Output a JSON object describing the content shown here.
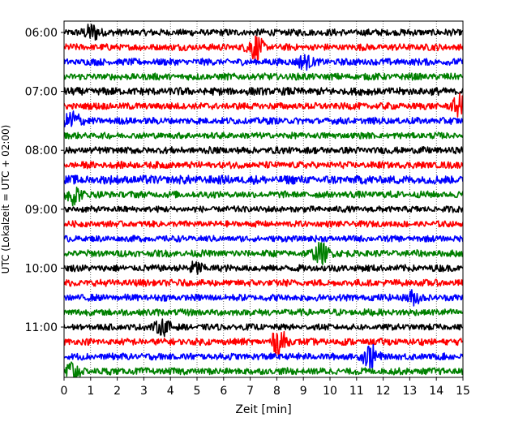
{
  "chart_data": {
    "type": "line",
    "title": "",
    "xlabel": "Zeit  [min]",
    "ylabel": "UTC (Lokalzeit = UTC + 02:00)",
    "xlim": [
      0,
      15
    ],
    "x_ticks": [
      "0",
      "1",
      "2",
      "3",
      "4",
      "5",
      "6",
      "7",
      "8",
      "9",
      "10",
      "11",
      "12",
      "13",
      "14",
      "15"
    ],
    "y_ticks": [
      "06:00",
      "07:00",
      "08:00",
      "09:00",
      "10:00",
      "11:00"
    ],
    "grid": "vertical dotted",
    "color_cycle": [
      "#000000",
      "#ff0000",
      "#0000ff",
      "#008000"
    ],
    "trace_interval_min": 15,
    "series": [
      {
        "start": "06:00",
        "color": "#000000",
        "amplitude": 0.22,
        "events": [
          {
            "t": 1.1,
            "amp": 0.55
          }
        ]
      },
      {
        "start": "06:15",
        "color": "#ff0000",
        "amplitude": 0.22,
        "events": [
          {
            "t": 7.2,
            "amp": 0.7
          }
        ]
      },
      {
        "start": "06:30",
        "color": "#0000ff",
        "amplitude": 0.22,
        "events": [
          {
            "t": 9.0,
            "amp": 0.4
          }
        ]
      },
      {
        "start": "06:45",
        "color": "#008000",
        "amplitude": 0.22,
        "events": []
      },
      {
        "start": "07:00",
        "color": "#000000",
        "amplitude": 0.25,
        "events": []
      },
      {
        "start": "07:15",
        "color": "#ff0000",
        "amplitude": 0.22,
        "events": [
          {
            "t": 14.9,
            "amp": 0.6
          }
        ]
      },
      {
        "start": "07:30",
        "color": "#0000ff",
        "amplitude": 0.22,
        "events": [
          {
            "t": 0.3,
            "amp": 0.75
          }
        ]
      },
      {
        "start": "07:45",
        "color": "#008000",
        "amplitude": 0.2,
        "events": []
      },
      {
        "start": "08:00",
        "color": "#000000",
        "amplitude": 0.22,
        "events": []
      },
      {
        "start": "08:15",
        "color": "#ff0000",
        "amplitude": 0.22,
        "events": []
      },
      {
        "start": "08:30",
        "color": "#0000ff",
        "amplitude": 0.28,
        "events": []
      },
      {
        "start": "08:45",
        "color": "#008000",
        "amplitude": 0.22,
        "events": [
          {
            "t": 0.4,
            "amp": 0.6
          }
        ]
      },
      {
        "start": "09:00",
        "color": "#000000",
        "amplitude": 0.2,
        "events": []
      },
      {
        "start": "09:15",
        "color": "#ff0000",
        "amplitude": 0.2,
        "events": []
      },
      {
        "start": "09:30",
        "color": "#0000ff",
        "amplitude": 0.2,
        "events": []
      },
      {
        "start": "09:45",
        "color": "#008000",
        "amplitude": 0.22,
        "events": [
          {
            "t": 9.7,
            "amp": 0.7
          }
        ]
      },
      {
        "start": "10:00",
        "color": "#000000",
        "amplitude": 0.22,
        "events": [
          {
            "t": 5.0,
            "amp": 0.35
          }
        ]
      },
      {
        "start": "10:15",
        "color": "#ff0000",
        "amplitude": 0.22,
        "events": []
      },
      {
        "start": "10:30",
        "color": "#0000ff",
        "amplitude": 0.22,
        "events": [
          {
            "t": 13.1,
            "amp": 0.35
          }
        ]
      },
      {
        "start": "10:45",
        "color": "#008000",
        "amplitude": 0.22,
        "events": []
      },
      {
        "start": "11:00",
        "color": "#000000",
        "amplitude": 0.2,
        "events": [
          {
            "t": 3.7,
            "amp": 0.55
          }
        ]
      },
      {
        "start": "11:15",
        "color": "#ff0000",
        "amplitude": 0.22,
        "events": [
          {
            "t": 8.1,
            "amp": 0.7
          }
        ]
      },
      {
        "start": "11:30",
        "color": "#0000ff",
        "amplitude": 0.22,
        "events": [
          {
            "t": 11.5,
            "amp": 0.65
          }
        ]
      },
      {
        "start": "11:45",
        "color": "#008000",
        "amplitude": 0.22,
        "events": [
          {
            "t": 0.3,
            "amp": 0.55
          }
        ]
      }
    ]
  }
}
